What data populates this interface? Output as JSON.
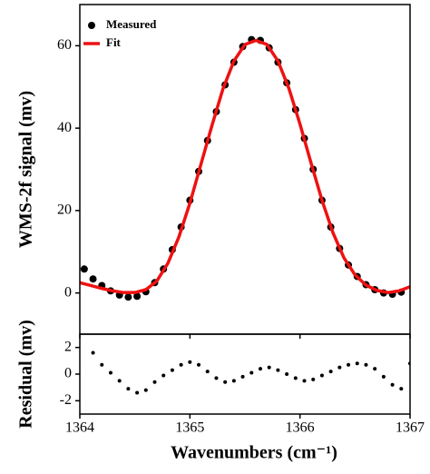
{
  "chart_data": [
    {
      "type": "scatter",
      "ylabel": "WMS-2f signal (mv)",
      "xlim": [
        1364,
        1367
      ],
      "ylim": [
        -10,
        70
      ],
      "yticks": [
        0,
        20,
        40,
        60
      ],
      "legend": "top-left",
      "series": [
        {
          "name": "Measured",
          "color": "#000000",
          "style": "marker",
          "x": [
            1364.04,
            1364.12,
            1364.2,
            1364.28,
            1364.36,
            1364.44,
            1364.52,
            1364.6,
            1364.68,
            1364.76,
            1364.84,
            1364.92,
            1365.0,
            1365.08,
            1365.16,
            1365.24,
            1365.32,
            1365.4,
            1365.48,
            1365.56,
            1365.64,
            1365.72,
            1365.8,
            1365.88,
            1365.96,
            1366.04,
            1366.12,
            1366.2,
            1366.28,
            1366.36,
            1366.44,
            1366.52,
            1366.6,
            1366.68,
            1366.76,
            1366.84,
            1366.92
          ],
          "values": [
            5.8,
            3.4,
            1.8,
            0.5,
            -0.5,
            -1.0,
            -0.8,
            0.3,
            2.5,
            5.8,
            10.5,
            16.0,
            22.5,
            29.5,
            37.0,
            44.0,
            50.5,
            56.0,
            59.8,
            61.5,
            61.3,
            59.5,
            56.0,
            51.0,
            44.5,
            37.5,
            30.0,
            22.5,
            16.0,
            10.8,
            6.8,
            4.0,
            2.0,
            0.8,
            0.0,
            -0.3,
            0.2
          ]
        },
        {
          "name": "Fit",
          "color": "#ee1111",
          "style": "line",
          "x": [
            1364.0,
            1364.1,
            1364.2,
            1364.3,
            1364.4,
            1364.5,
            1364.6,
            1364.7,
            1364.8,
            1364.9,
            1365.0,
            1365.1,
            1365.2,
            1365.3,
            1365.4,
            1365.5,
            1365.6,
            1365.7,
            1365.8,
            1365.9,
            1366.0,
            1366.1,
            1366.2,
            1366.3,
            1366.4,
            1366.5,
            1366.6,
            1366.7,
            1366.8,
            1366.9,
            1367.0
          ],
          "values": [
            2.5,
            1.8,
            1.1,
            0.5,
            0.1,
            0.1,
            0.8,
            2.9,
            7.2,
            13.6,
            21.8,
            31.2,
            40.6,
            49.5,
            56.3,
            60.3,
            61.3,
            60.3,
            56.3,
            49.6,
            41.0,
            31.6,
            22.5,
            14.6,
            8.5,
            4.4,
            1.9,
            0.6,
            0.1,
            0.5,
            1.5
          ]
        }
      ]
    },
    {
      "type": "scatter",
      "ylabel": "Residual (mv)",
      "xlabel": "Wavenumbers (cm⁻¹)",
      "xlim": [
        1364,
        1367
      ],
      "xticks": [
        1364,
        1365,
        1366,
        1367
      ],
      "ylim": [
        -3,
        3
      ],
      "yticks": [
        -2,
        0,
        2
      ],
      "series": [
        {
          "color": "#000000",
          "style": "dot",
          "x": [
            1364.12,
            1364.2,
            1364.28,
            1364.36,
            1364.44,
            1364.52,
            1364.6,
            1364.68,
            1364.76,
            1364.84,
            1364.92,
            1365.0,
            1365.08,
            1365.16,
            1365.24,
            1365.32,
            1365.4,
            1365.48,
            1365.56,
            1365.64,
            1365.72,
            1365.8,
            1365.88,
            1365.96,
            1366.04,
            1366.12,
            1366.2,
            1366.28,
            1366.36,
            1366.44,
            1366.52,
            1366.6,
            1366.68,
            1366.76,
            1366.84,
            1366.92,
            1367.0
          ],
          "values": [
            1.6,
            0.7,
            0.1,
            -0.5,
            -1.1,
            -1.4,
            -1.2,
            -0.6,
            -0.1,
            0.3,
            0.7,
            0.9,
            0.7,
            0.2,
            -0.3,
            -0.6,
            -0.5,
            -0.2,
            0.1,
            0.4,
            0.5,
            0.3,
            0.0,
            -0.3,
            -0.5,
            -0.4,
            -0.1,
            0.2,
            0.5,
            0.7,
            0.8,
            0.7,
            0.4,
            -0.2,
            -0.8,
            -1.1,
            0.8
          ]
        }
      ]
    }
  ]
}
